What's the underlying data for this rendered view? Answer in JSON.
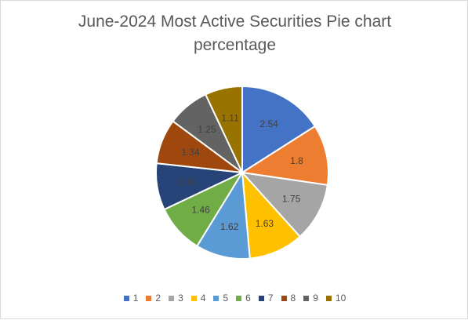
{
  "chart_data": {
    "type": "pie",
    "title_lines": [
      "June-2024 Most Active Securities Pie chart",
      "percentage"
    ],
    "categories": [
      "1",
      "2",
      "3",
      "4",
      "5",
      "6",
      "7",
      "8",
      "9",
      "10"
    ],
    "values": [
      2.54,
      1.8,
      1.75,
      1.63,
      1.62,
      1.46,
      1.39,
      1.34,
      1.25,
      1.11
    ],
    "colors": [
      "#4472c4",
      "#ed7d31",
      "#a5a5a5",
      "#ffc000",
      "#5b9bd5",
      "#70ad47",
      "#264478",
      "#9e480e",
      "#636363",
      "#997300"
    ],
    "legend_position": "bottom",
    "data_labels": true,
    "start_angle_deg": 0,
    "direction": "clockwise"
  }
}
